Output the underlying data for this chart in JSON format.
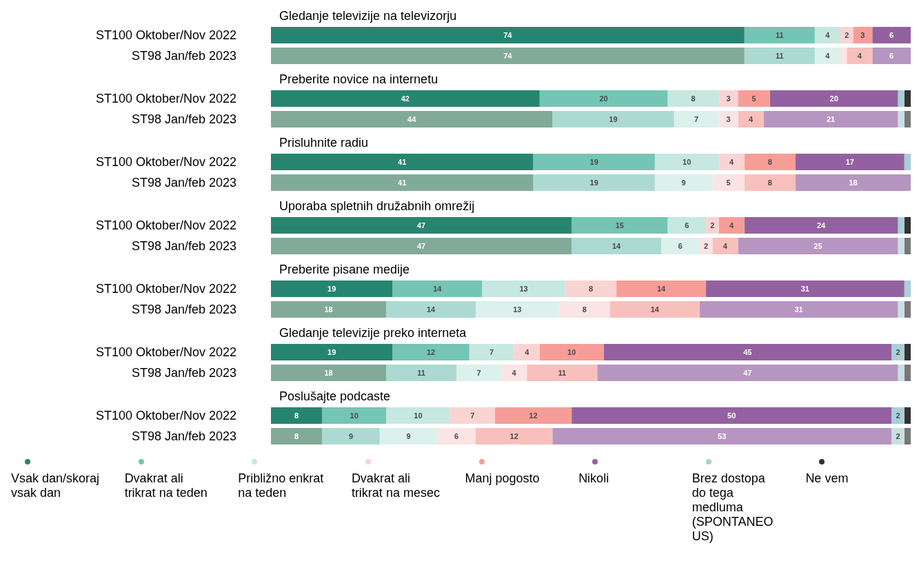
{
  "chart_data": [
    {
      "type": "bar",
      "orientation": "horizontal",
      "stacked": true,
      "title": "Gledanje televizije na televizorju",
      "categories": [
        "ST100 Oktober/Nov 2022",
        "ST98 Jan/feb 2023"
      ],
      "xlim": [
        0,
        100
      ],
      "tick_labels": "y",
      "series": [
        {
          "colors": [
            "#268571",
            "#82aa9b"
          ],
          "values": [
            74,
            74
          ],
          "value_labels": [
            "74",
            "74"
          ]
        },
        {
          "colors": [
            "#74c5b6",
            "#acdad2"
          ],
          "values": [
            11,
            11
          ],
          "value_labels": [
            "11",
            "11"
          ]
        },
        {
          "colors": [
            "#c6e8e1",
            "#dcf0ec"
          ],
          "values": [
            4,
            4
          ],
          "value_labels": [
            "4",
            "4"
          ]
        },
        {
          "colors": [
            "#fad4d3",
            "#fae4e4"
          ],
          "values": [
            2,
            1
          ],
          "value_labels": [
            "2",
            null
          ]
        },
        {
          "colors": [
            "#f79d98",
            "#f8c0bc"
          ],
          "values": [
            3,
            4
          ],
          "value_labels": [
            "3",
            "4"
          ]
        },
        {
          "colors": [
            "#9461a0",
            "#b795c1"
          ],
          "values": [
            6,
            6
          ],
          "value_labels": [
            "6",
            "6"
          ]
        },
        {
          "colors": [
            "#a9cfd6",
            "#c8e0e4"
          ],
          "values": [
            0,
            0
          ],
          "value_labels": [
            null,
            null
          ]
        },
        {
          "colors": [
            "#333333",
            "#777777"
          ],
          "values": [
            0,
            0
          ],
          "value_labels": [
            null,
            null
          ]
        }
      ]
    },
    {
      "type": "bar",
      "orientation": "horizontal",
      "stacked": true,
      "title": "Preberite novice na internetu",
      "categories": [
        "ST100 Oktober/Nov 2022",
        "ST98 Jan/feb 2023"
      ],
      "xlim": [
        0,
        100
      ],
      "tick_labels": "y",
      "series": [
        {
          "colors": [
            "#268571",
            "#82aa9b"
          ],
          "values": [
            42,
            44
          ],
          "value_labels": [
            "42",
            "44"
          ]
        },
        {
          "colors": [
            "#74c5b6",
            "#acdad2"
          ],
          "values": [
            20,
            19
          ],
          "value_labels": [
            "20",
            "19"
          ]
        },
        {
          "colors": [
            "#c6e8e1",
            "#dcf0ec"
          ],
          "values": [
            8,
            7
          ],
          "value_labels": [
            "8",
            "7"
          ]
        },
        {
          "colors": [
            "#fad4d3",
            "#fae4e4"
          ],
          "values": [
            3,
            3
          ],
          "value_labels": [
            "3",
            "3"
          ]
        },
        {
          "colors": [
            "#f79d98",
            "#f8c0bc"
          ],
          "values": [
            5,
            4
          ],
          "value_labels": [
            "5",
            "4"
          ]
        },
        {
          "colors": [
            "#9461a0",
            "#b795c1"
          ],
          "values": [
            20,
            21
          ],
          "value_labels": [
            "20",
            "21"
          ]
        },
        {
          "colors": [
            "#a9cfd6",
            "#c8e0e4"
          ],
          "values": [
            1,
            1
          ],
          "value_labels": [
            null,
            null
          ]
        },
        {
          "colors": [
            "#333333",
            "#777777"
          ],
          "values": [
            1,
            1
          ],
          "value_labels": [
            null,
            null
          ]
        }
      ]
    },
    {
      "type": "bar",
      "orientation": "horizontal",
      "stacked": true,
      "title": "Prisluhnite radiu",
      "categories": [
        "ST100 Oktober/Nov 2022",
        "ST98 Jan/feb 2023"
      ],
      "xlim": [
        0,
        100
      ],
      "tick_labels": "y",
      "series": [
        {
          "colors": [
            "#268571",
            "#82aa9b"
          ],
          "values": [
            41,
            41
          ],
          "value_labels": [
            "41",
            "41"
          ]
        },
        {
          "colors": [
            "#74c5b6",
            "#acdad2"
          ],
          "values": [
            19,
            19
          ],
          "value_labels": [
            "19",
            "19"
          ]
        },
        {
          "colors": [
            "#c6e8e1",
            "#dcf0ec"
          ],
          "values": [
            10,
            9
          ],
          "value_labels": [
            "10",
            "9"
          ]
        },
        {
          "colors": [
            "#fad4d3",
            "#fae4e4"
          ],
          "values": [
            4,
            5
          ],
          "value_labels": [
            "4",
            "5"
          ]
        },
        {
          "colors": [
            "#f79d98",
            "#f8c0bc"
          ],
          "values": [
            8,
            8
          ],
          "value_labels": [
            "8",
            "8"
          ]
        },
        {
          "colors": [
            "#9461a0",
            "#b795c1"
          ],
          "values": [
            17,
            18
          ],
          "value_labels": [
            "17",
            "18"
          ]
        },
        {
          "colors": [
            "#a9cfd6",
            "#c8e0e4"
          ],
          "values": [
            1,
            0
          ],
          "value_labels": [
            null,
            null
          ]
        },
        {
          "colors": [
            "#333333",
            "#777777"
          ],
          "values": [
            0,
            0
          ],
          "value_labels": [
            null,
            null
          ]
        }
      ]
    },
    {
      "type": "bar",
      "orientation": "horizontal",
      "stacked": true,
      "title": "Uporaba spletnih družabnih omrežij",
      "categories": [
        "ST100 Oktober/Nov 2022",
        "ST98 Jan/feb 2023"
      ],
      "xlim": [
        0,
        100
      ],
      "tick_labels": "y",
      "series": [
        {
          "colors": [
            "#268571",
            "#82aa9b"
          ],
          "values": [
            47,
            47
          ],
          "value_labels": [
            "47",
            "47"
          ]
        },
        {
          "colors": [
            "#74c5b6",
            "#acdad2"
          ],
          "values": [
            15,
            14
          ],
          "value_labels": [
            "15",
            "14"
          ]
        },
        {
          "colors": [
            "#c6e8e1",
            "#dcf0ec"
          ],
          "values": [
            6,
            6
          ],
          "value_labels": [
            "6",
            "6"
          ]
        },
        {
          "colors": [
            "#fad4d3",
            "#fae4e4"
          ],
          "values": [
            2,
            2
          ],
          "value_labels": [
            "2",
            "2"
          ]
        },
        {
          "colors": [
            "#f79d98",
            "#f8c0bc"
          ],
          "values": [
            4,
            4
          ],
          "value_labels": [
            "4",
            "4"
          ]
        },
        {
          "colors": [
            "#9461a0",
            "#b795c1"
          ],
          "values": [
            24,
            25
          ],
          "value_labels": [
            "24",
            "25"
          ]
        },
        {
          "colors": [
            "#a9cfd6",
            "#c8e0e4"
          ],
          "values": [
            1,
            1
          ],
          "value_labels": [
            null,
            null
          ]
        },
        {
          "colors": [
            "#333333",
            "#777777"
          ],
          "values": [
            1,
            1
          ],
          "value_labels": [
            null,
            null
          ]
        }
      ]
    },
    {
      "type": "bar",
      "orientation": "horizontal",
      "stacked": true,
      "title": "Preberite pisane medije",
      "categories": [
        "ST100 Oktober/Nov 2022",
        "ST98 Jan/feb 2023"
      ],
      "xlim": [
        0,
        100
      ],
      "tick_labels": "y",
      "series": [
        {
          "colors": [
            "#268571",
            "#82aa9b"
          ],
          "values": [
            19,
            18
          ],
          "value_labels": [
            "19",
            "18"
          ]
        },
        {
          "colors": [
            "#74c5b6",
            "#acdad2"
          ],
          "values": [
            14,
            14
          ],
          "value_labels": [
            "14",
            "14"
          ]
        },
        {
          "colors": [
            "#c6e8e1",
            "#dcf0ec"
          ],
          "values": [
            13,
            13
          ],
          "value_labels": [
            "13",
            "13"
          ]
        },
        {
          "colors": [
            "#fad4d3",
            "#fae4e4"
          ],
          "values": [
            8,
            8
          ],
          "value_labels": [
            "8",
            "8"
          ]
        },
        {
          "colors": [
            "#f79d98",
            "#f8c0bc"
          ],
          "values": [
            14,
            14
          ],
          "value_labels": [
            "14",
            "14"
          ]
        },
        {
          "colors": [
            "#9461a0",
            "#b795c1"
          ],
          "values": [
            31,
            31
          ],
          "value_labels": [
            "31",
            "31"
          ]
        },
        {
          "colors": [
            "#a9cfd6",
            "#c8e0e4"
          ],
          "values": [
            1,
            1
          ],
          "value_labels": [
            null,
            null
          ]
        },
        {
          "colors": [
            "#333333",
            "#777777"
          ],
          "values": [
            0,
            1
          ],
          "value_labels": [
            null,
            null
          ]
        }
      ]
    },
    {
      "type": "bar",
      "orientation": "horizontal",
      "stacked": true,
      "title": "Gledanje televizije preko interneta",
      "categories": [
        "ST100 Oktober/Nov 2022",
        "ST98 Jan/feb 2023"
      ],
      "xlim": [
        0,
        100
      ],
      "tick_labels": "y",
      "series": [
        {
          "colors": [
            "#268571",
            "#82aa9b"
          ],
          "values": [
            19,
            18
          ],
          "value_labels": [
            "19",
            "18"
          ]
        },
        {
          "colors": [
            "#74c5b6",
            "#acdad2"
          ],
          "values": [
            12,
            11
          ],
          "value_labels": [
            "12",
            "11"
          ]
        },
        {
          "colors": [
            "#c6e8e1",
            "#dcf0ec"
          ],
          "values": [
            7,
            7
          ],
          "value_labels": [
            "7",
            "7"
          ]
        },
        {
          "colors": [
            "#fad4d3",
            "#fae4e4"
          ],
          "values": [
            4,
            4
          ],
          "value_labels": [
            "4",
            "4"
          ]
        },
        {
          "colors": [
            "#f79d98",
            "#f8c0bc"
          ],
          "values": [
            10,
            11
          ],
          "value_labels": [
            "10",
            "11"
          ]
        },
        {
          "colors": [
            "#9461a0",
            "#b795c1"
          ],
          "values": [
            45,
            47
          ],
          "value_labels": [
            "45",
            "47"
          ]
        },
        {
          "colors": [
            "#a9cfd6",
            "#c8e0e4"
          ],
          "values": [
            2,
            1
          ],
          "value_labels": [
            "2",
            null
          ]
        },
        {
          "colors": [
            "#333333",
            "#777777"
          ],
          "values": [
            1,
            1
          ],
          "value_labels": [
            null,
            null
          ]
        }
      ]
    },
    {
      "type": "bar",
      "orientation": "horizontal",
      "stacked": true,
      "title": "Poslušajte podcaste",
      "categories": [
        "ST100 Oktober/Nov 2022",
        "ST98 Jan/feb 2023"
      ],
      "xlim": [
        0,
        100
      ],
      "tick_labels": "y",
      "legend": "bottom",
      "series": [
        {
          "name": "Vsak dan/skoraj vsak dan",
          "colors": [
            "#268571",
            "#82aa9b"
          ],
          "values": [
            8,
            8
          ],
          "value_labels": [
            "8",
            "8"
          ]
        },
        {
          "name": "Dvakrat ali trikrat na teden",
          "colors": [
            "#74c5b6",
            "#acdad2"
          ],
          "values": [
            10,
            9
          ],
          "value_labels": [
            "10",
            "9"
          ]
        },
        {
          "name": "Približno enkrat na teden",
          "colors": [
            "#c6e8e1",
            "#dcf0ec"
          ],
          "values": [
            10,
            9
          ],
          "value_labels": [
            "10",
            "9"
          ]
        },
        {
          "name": "Dvakrat ali trikrat na mesec",
          "colors": [
            "#fad4d3",
            "#fae4e4"
          ],
          "values": [
            7,
            6
          ],
          "value_labels": [
            "7",
            "6"
          ]
        },
        {
          "name": "Manj pogosto",
          "colors": [
            "#f79d98",
            "#f8c0bc"
          ],
          "values": [
            12,
            12
          ],
          "value_labels": [
            "12",
            "12"
          ]
        },
        {
          "name": "Nikoli",
          "colors": [
            "#9461a0",
            "#b795c1"
          ],
          "values": [
            50,
            53
          ],
          "value_labels": [
            "50",
            "53"
          ]
        },
        {
          "name": "Brez dostopa do tega medluma (SPONTANEOUS)",
          "colors": [
            "#a9cfd6",
            "#c8e0e4"
          ],
          "values": [
            2,
            2
          ],
          "value_labels": [
            "2",
            "2"
          ]
        },
        {
          "name": "Ne vem",
          "colors": [
            "#333333",
            "#777777"
          ],
          "values": [
            1,
            1
          ],
          "value_labels": [
            null,
            null
          ]
        }
      ]
    }
  ]
}
